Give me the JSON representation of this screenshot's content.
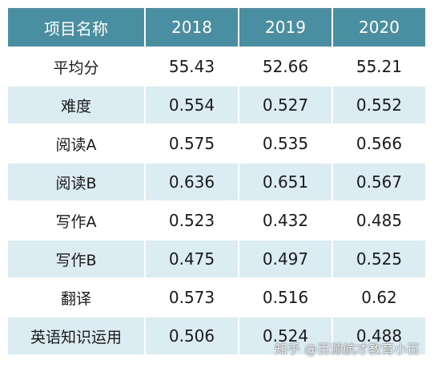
{
  "table": {
    "headers": [
      "项目名称",
      "2018",
      "2019",
      "2020"
    ],
    "rows": [
      [
        "平均分",
        "55.43",
        "52.66",
        "55.21"
      ],
      [
        "难度",
        "0.554",
        "0.527",
        "0.552"
      ],
      [
        "阅读A",
        "0.575",
        "0.535",
        "0.566"
      ],
      [
        "阅读B",
        "0.636",
        "0.651",
        "0.567"
      ],
      [
        "写作A",
        "0.523",
        "0.432",
        "0.485"
      ],
      [
        "写作B",
        "0.475",
        "0.497",
        "0.525"
      ],
      [
        "翻译",
        "0.573",
        "0.516",
        "0.62"
      ],
      [
        "英语知识运用",
        "0.506",
        "0.524",
        "0.488"
      ]
    ]
  },
  "watermark": {
    "text": "知乎 @百源航才教育小百"
  },
  "colors": {
    "header_bg": "#4a8fa1",
    "header_text": "#ffffff",
    "row_alt_bg": "#dbedf3",
    "row_bg": "#ffffff"
  }
}
